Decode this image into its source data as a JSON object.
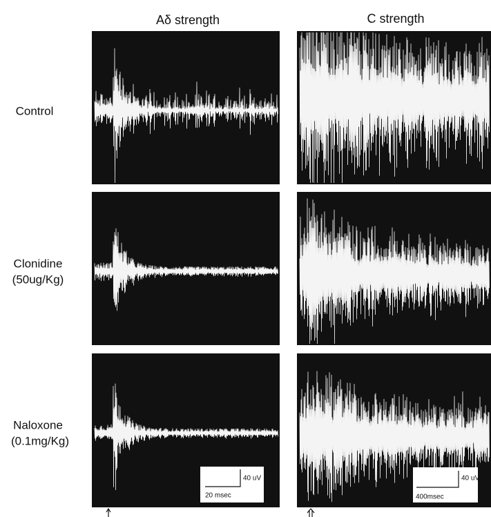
{
  "headers": [
    "Aδ strength",
    "C strength"
  ],
  "rows": [
    {
      "label": "Control"
    },
    {
      "label": "Clonidine",
      "dose": "(50ug/Kg)"
    },
    {
      "label": "Naloxone",
      "dose": "(0.1mg/Kg)"
    }
  ],
  "scale_bars": [
    {
      "amplitude": "40 uV",
      "time": "20 msec"
    },
    {
      "amplitude": "40 uV",
      "time": "400msec"
    }
  ]
}
